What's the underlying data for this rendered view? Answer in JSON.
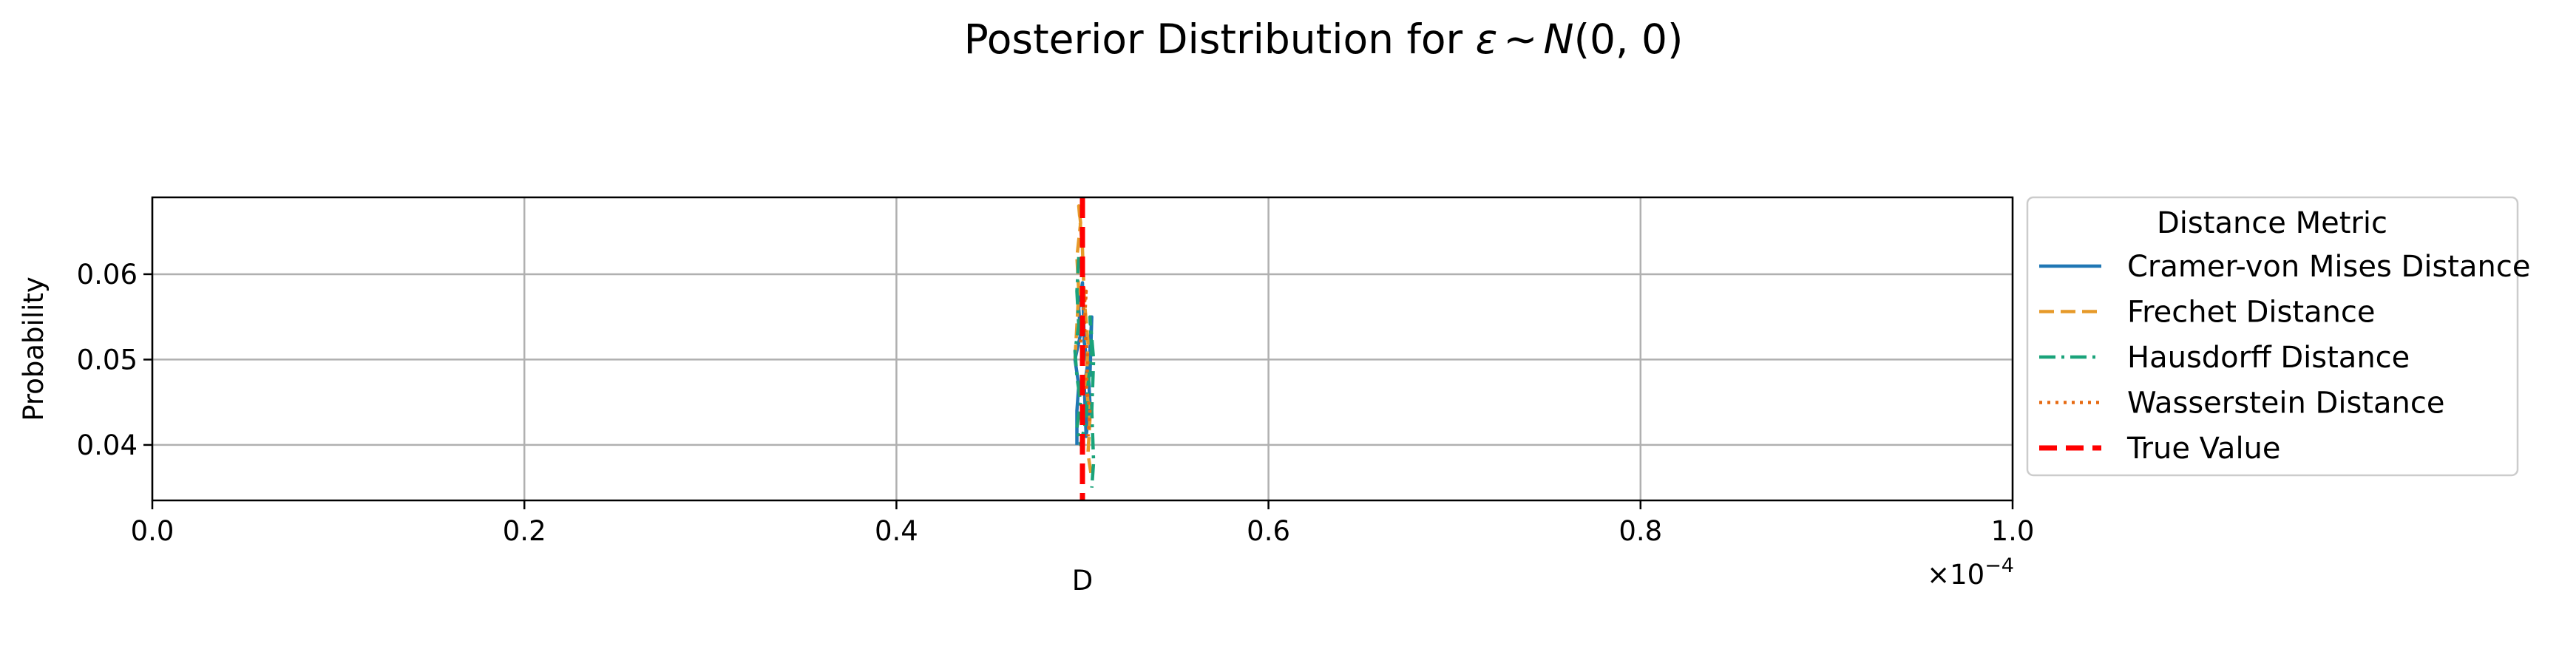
{
  "chart_data": {
    "type": "line",
    "title": "Posterior Distribution for ε ~ N(0, 0)",
    "title_parts": {
      "prefix": "Posterior Distribution for ",
      "epsilon": "ε",
      "tilde": "~",
      "dist": "N",
      "args": "(0, 0)"
    },
    "xlabel": "D",
    "ylabel": "Probability",
    "x_offset_text": "×10",
    "x_offset_exponent": "−4",
    "x_scale": 0.0001,
    "xlim": [
      0.0,
      1.0
    ],
    "ylim": [
      0.0335,
      0.069
    ],
    "x_ticks": [
      0.0,
      0.2,
      0.4,
      0.6,
      0.8,
      1.0
    ],
    "x_tick_labels": [
      "0.0",
      "0.2",
      "0.4",
      "0.6",
      "0.8",
      "1.0"
    ],
    "y_ticks": [
      0.04,
      0.05,
      0.06
    ],
    "y_tick_labels": [
      "0.04",
      "0.05",
      "0.06"
    ],
    "grid": true,
    "legend": {
      "title": "Distance Metric",
      "placement": "outside-right"
    },
    "true_value": {
      "name": "True Value",
      "x": 0.5,
      "color": "#ff0000",
      "style": "dashed"
    },
    "series": [
      {
        "name": "Cramer-von Mises Distance",
        "color": "#1f77b4",
        "style": "solid",
        "points": [
          [
            0.497,
            0.04
          ],
          [
            0.497,
            0.044
          ],
          [
            0.498,
            0.047
          ],
          [
            0.496,
            0.05
          ],
          [
            0.499,
            0.053
          ],
          [
            0.498,
            0.056
          ],
          [
            0.5,
            0.059
          ],
          [
            0.501,
            0.052
          ],
          [
            0.503,
            0.049
          ],
          [
            0.504,
            0.045
          ],
          [
            0.502,
            0.041
          ],
          [
            0.501,
            0.047
          ],
          [
            0.504,
            0.051
          ],
          [
            0.505,
            0.055
          ],
          [
            0.504,
            0.048
          ]
        ]
      },
      {
        "name": "Frechet Distance",
        "color": "#e69a2a",
        "style": "dashed",
        "points": [
          [
            0.496,
            0.05
          ],
          [
            0.497,
            0.054
          ],
          [
            0.498,
            0.058
          ],
          [
            0.497,
            0.062
          ],
          [
            0.499,
            0.066
          ],
          [
            0.498,
            0.068
          ],
          [
            0.5,
            0.063
          ],
          [
            0.501,
            0.057
          ],
          [
            0.503,
            0.052
          ],
          [
            0.502,
            0.047
          ],
          [
            0.504,
            0.043
          ],
          [
            0.503,
            0.039
          ],
          [
            0.505,
            0.036
          ]
        ]
      },
      {
        "name": "Hausdorff Distance",
        "color": "#1aa37a",
        "style": "dashdot",
        "points": [
          [
            0.498,
            0.062
          ],
          [
            0.497,
            0.058
          ],
          [
            0.498,
            0.054
          ],
          [
            0.496,
            0.051
          ],
          [
            0.497,
            0.048
          ],
          [
            0.499,
            0.045
          ],
          [
            0.497,
            0.042
          ],
          [
            0.499,
            0.04
          ],
          [
            0.502,
            0.043
          ],
          [
            0.503,
            0.047
          ],
          [
            0.505,
            0.051
          ],
          [
            0.504,
            0.055
          ],
          [
            0.506,
            0.05
          ],
          [
            0.505,
            0.044
          ],
          [
            0.506,
            0.038
          ],
          [
            0.505,
            0.035
          ]
        ]
      },
      {
        "name": "Wasserstein Distance",
        "color": "#e66a12",
        "style": "dotted",
        "points": [
          [
            0.499,
            0.052
          ],
          [
            0.5,
            0.055
          ],
          [
            0.502,
            0.058
          ],
          [
            0.501,
            0.054
          ],
          [
            0.503,
            0.05
          ],
          [
            0.502,
            0.047
          ],
          [
            0.504,
            0.044
          ],
          [
            0.503,
            0.041
          ]
        ]
      }
    ]
  }
}
